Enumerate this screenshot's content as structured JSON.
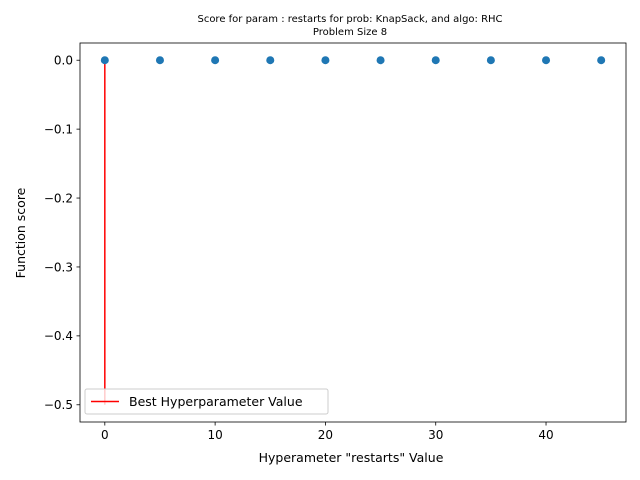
{
  "chart_data": {
    "type": "scatter",
    "title": "Score for param : restarts for prob: KnapSack, and algo: RHC",
    "subtitle": "Problem Size 8",
    "xlabel": "Hyperameter \"restarts\" Value",
    "ylabel": "Function score",
    "xlim": [
      -2.25,
      47.25
    ],
    "ylim": [
      -0.525,
      0.025
    ],
    "x_ticks": [
      0,
      10,
      20,
      30,
      40
    ],
    "x_tick_labels": [
      "0",
      "10",
      "20",
      "30",
      "40"
    ],
    "y_ticks": [
      0.0,
      -0.1,
      -0.2,
      -0.3,
      -0.4,
      -0.5
    ],
    "y_tick_labels": [
      "0.0",
      "−0.1",
      "−0.2",
      "−0.3",
      "−0.4",
      "−0.5"
    ],
    "grid": false,
    "legend_position": "lower-left",
    "series": [
      {
        "x": [
          0,
          5,
          10,
          15,
          20,
          25,
          30,
          35,
          40,
          45
        ],
        "y": [
          0,
          0,
          0,
          0,
          0,
          0,
          0,
          0,
          0,
          0
        ],
        "color": "#1f77b4"
      }
    ],
    "best_line": {
      "name": "Best Hyperparameter Value",
      "x": 0,
      "y_from": -0.5,
      "y_to": 0,
      "color": "#ff0000"
    }
  }
}
